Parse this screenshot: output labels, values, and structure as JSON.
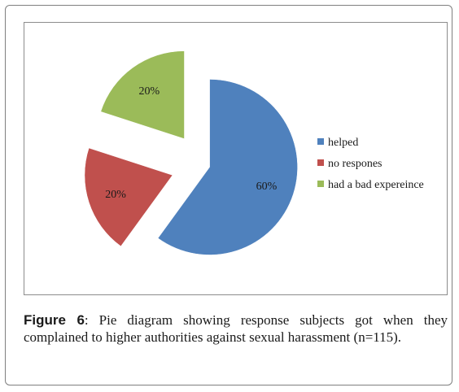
{
  "chart_data": {
    "type": "pie",
    "series": [
      {
        "name": "helped",
        "value": 60,
        "label": "60%",
        "color": "#4f81bd"
      },
      {
        "name": "no respones",
        "value": 20,
        "label": "20%",
        "color": "#c0504d"
      },
      {
        "name": "had a bad expereince",
        "value": 20,
        "label": "20%",
        "color": "#9bbb59"
      }
    ],
    "legend": [
      "helped",
      "no respones",
      "had a bad expereince"
    ],
    "legend_position": "right",
    "exploded": true
  },
  "caption": {
    "label": "Figure 6",
    "text": ": Pie diagram showing response subjects got when they complained to higher authorities against sexual harassment (n=115)."
  }
}
